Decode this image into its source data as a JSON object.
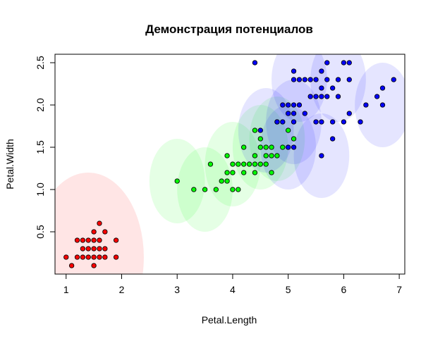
{
  "chart_data": {
    "type": "scatter",
    "title": "Демонстрация потенциалов",
    "xlabel": "Petal.Length",
    "ylabel": "Petal.Width",
    "xlim": [
      0.8,
      7.1
    ],
    "ylim": [
      0.0,
      2.6
    ],
    "x_ticks": [
      1,
      2,
      3,
      4,
      5,
      6,
      7
    ],
    "y_ticks": [
      0.5,
      1.0,
      1.5,
      2.0,
      2.5
    ],
    "x_tick_labels": [
      "1",
      "2",
      "3",
      "4",
      "5",
      "6",
      "7"
    ],
    "y_tick_labels": [
      "0.5",
      "1.0",
      "1.5",
      "2.0",
      "2.5"
    ],
    "grid": false,
    "colors": {
      "red_points": "#ff0000",
      "green_points": "#00ff00",
      "blue_points": "#0000ff",
      "red_potential": "#ff0000",
      "green_potential": "#00ff00",
      "blue_potential": "#0000ff"
    },
    "potentials": [
      {
        "x": 1.4,
        "y": 0.2,
        "radius": 1.0,
        "color": "#ff0000"
      },
      {
        "x": 3.0,
        "y": 1.1,
        "radius": 0.5,
        "color": "#00ff00"
      },
      {
        "x": 3.5,
        "y": 1.0,
        "radius": 0.5,
        "color": "#00ff00"
      },
      {
        "x": 4.0,
        "y": 1.3,
        "radius": 0.5,
        "color": "#00ff00"
      },
      {
        "x": 4.5,
        "y": 1.5,
        "radius": 0.5,
        "color": "#00ff00"
      },
      {
        "x": 4.8,
        "y": 1.6,
        "radius": 0.5,
        "color": "#00ff00"
      },
      {
        "x": 4.6,
        "y": 1.7,
        "radius": 0.5,
        "color": "#0000ff"
      },
      {
        "x": 5.0,
        "y": 1.5,
        "radius": 0.5,
        "color": "#0000ff"
      },
      {
        "x": 5.1,
        "y": 1.8,
        "radius": 0.5,
        "color": "#0000ff"
      },
      {
        "x": 5.6,
        "y": 1.4,
        "radius": 0.5,
        "color": "#0000ff"
      },
      {
        "x": 5.2,
        "y": 2.3,
        "radius": 0.5,
        "color": "#0000ff"
      },
      {
        "x": 5.9,
        "y": 2.3,
        "radius": 0.5,
        "color": "#0000ff"
      },
      {
        "x": 6.7,
        "y": 2.0,
        "radius": 0.5,
        "color": "#0000ff"
      }
    ],
    "series": [
      {
        "color": "#ff0000",
        "points": [
          [
            1.0,
            0.2
          ],
          [
            1.1,
            0.1
          ],
          [
            1.2,
            0.2
          ],
          [
            1.3,
            0.2
          ],
          [
            1.3,
            0.3
          ],
          [
            1.3,
            0.4
          ],
          [
            1.4,
            0.2
          ],
          [
            1.4,
            0.3
          ],
          [
            1.5,
            0.1
          ],
          [
            1.5,
            0.2
          ],
          [
            1.5,
            0.3
          ],
          [
            1.5,
            0.4
          ],
          [
            1.6,
            0.2
          ],
          [
            1.6,
            0.4
          ],
          [
            1.6,
            0.6
          ],
          [
            1.7,
            0.3
          ],
          [
            1.7,
            0.5
          ],
          [
            1.9,
            0.2
          ],
          [
            1.9,
            0.4
          ],
          [
            1.2,
            0.4
          ],
          [
            1.4,
            0.4
          ],
          [
            1.6,
            0.3
          ],
          [
            1.7,
            0.2
          ],
          [
            1.5,
            0.5
          ]
        ]
      },
      {
        "color": "#00ff00",
        "points": [
          [
            3.0,
            1.1
          ],
          [
            3.3,
            1.0
          ],
          [
            3.5,
            1.0
          ],
          [
            3.6,
            1.3
          ],
          [
            3.7,
            1.0
          ],
          [
            3.8,
            1.1
          ],
          [
            3.9,
            1.1
          ],
          [
            3.9,
            1.2
          ],
          [
            3.9,
            1.4
          ],
          [
            4.0,
            1.0
          ],
          [
            4.0,
            1.2
          ],
          [
            4.0,
            1.3
          ],
          [
            4.1,
            1.0
          ],
          [
            4.1,
            1.3
          ],
          [
            4.2,
            1.2
          ],
          [
            4.2,
            1.3
          ],
          [
            4.2,
            1.5
          ],
          [
            4.3,
            1.3
          ],
          [
            4.4,
            1.2
          ],
          [
            4.4,
            1.3
          ],
          [
            4.4,
            1.4
          ],
          [
            4.5,
            1.3
          ],
          [
            4.5,
            1.5
          ],
          [
            4.5,
            1.6
          ],
          [
            4.6,
            1.3
          ],
          [
            4.6,
            1.4
          ],
          [
            4.6,
            1.5
          ],
          [
            4.7,
            1.2
          ],
          [
            4.7,
            1.4
          ],
          [
            4.7,
            1.5
          ],
          [
            4.8,
            1.4
          ],
          [
            4.8,
            1.8
          ],
          [
            4.9,
            1.5
          ],
          [
            5.0,
            1.7
          ],
          [
            5.1,
            1.6
          ],
          [
            4.4,
            1.7
          ]
        ]
      },
      {
        "color": "#0000ff",
        "points": [
          [
            4.5,
            1.7
          ],
          [
            4.8,
            1.8
          ],
          [
            4.9,
            1.8
          ],
          [
            4.9,
            2.0
          ],
          [
            5.0,
            1.5
          ],
          [
            5.0,
            1.9
          ],
          [
            5.0,
            2.0
          ],
          [
            5.1,
            1.5
          ],
          [
            5.1,
            1.8
          ],
          [
            5.1,
            1.9
          ],
          [
            5.1,
            2.0
          ],
          [
            5.1,
            2.3
          ],
          [
            5.1,
            2.4
          ],
          [
            5.2,
            2.0
          ],
          [
            5.2,
            2.3
          ],
          [
            5.3,
            1.9
          ],
          [
            5.3,
            2.3
          ],
          [
            5.4,
            2.1
          ],
          [
            5.4,
            2.3
          ],
          [
            5.5,
            1.8
          ],
          [
            5.5,
            2.1
          ],
          [
            5.5,
            2.3
          ],
          [
            5.6,
            1.4
          ],
          [
            5.6,
            1.8
          ],
          [
            5.6,
            2.1
          ],
          [
            5.6,
            2.2
          ],
          [
            5.6,
            2.4
          ],
          [
            5.7,
            2.1
          ],
          [
            5.7,
            2.3
          ],
          [
            5.7,
            2.5
          ],
          [
            5.8,
            1.6
          ],
          [
            5.8,
            1.8
          ],
          [
            5.8,
            2.2
          ],
          [
            5.9,
            2.1
          ],
          [
            5.9,
            2.3
          ],
          [
            6.0,
            1.8
          ],
          [
            6.0,
            2.5
          ],
          [
            6.1,
            1.9
          ],
          [
            6.1,
            2.3
          ],
          [
            6.1,
            2.5
          ],
          [
            6.3,
            1.8
          ],
          [
            6.4,
            2.0
          ],
          [
            6.6,
            2.1
          ],
          [
            6.7,
            2.0
          ],
          [
            6.7,
            2.2
          ],
          [
            6.9,
            2.3
          ],
          [
            4.4,
            2.5
          ]
        ]
      }
    ]
  }
}
